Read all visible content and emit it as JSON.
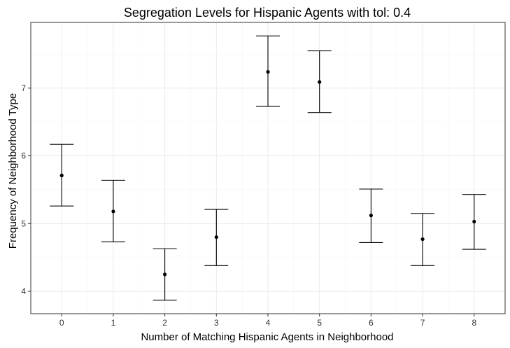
{
  "chart_data": {
    "type": "errorbar",
    "title": "Segregation Levels for Hispanic Agents with tol: 0.4",
    "xlabel": "Number of Matching Hispanic Agents in Neighborhood",
    "ylabel": "Frequency of Neighborhood Type",
    "categories": [
      "0",
      "1",
      "2",
      "3",
      "4",
      "5",
      "6",
      "7",
      "8"
    ],
    "values": [
      5.71,
      5.18,
      4.25,
      4.8,
      7.24,
      7.09,
      5.12,
      4.77,
      5.03
    ],
    "lower": [
      5.26,
      4.73,
      3.87,
      4.38,
      6.73,
      6.64,
      4.72,
      4.38,
      4.62
    ],
    "upper": [
      6.17,
      5.64,
      4.63,
      5.21,
      7.77,
      7.55,
      5.51,
      5.15,
      5.43
    ],
    "yticks": [
      4,
      5,
      6,
      7
    ],
    "ylim": [
      3.67,
      7.97
    ],
    "grid": true,
    "legend": "none",
    "colors": {
      "panel_border": "#333333",
      "grid": "#ebebeb",
      "marks": "#000000"
    }
  }
}
